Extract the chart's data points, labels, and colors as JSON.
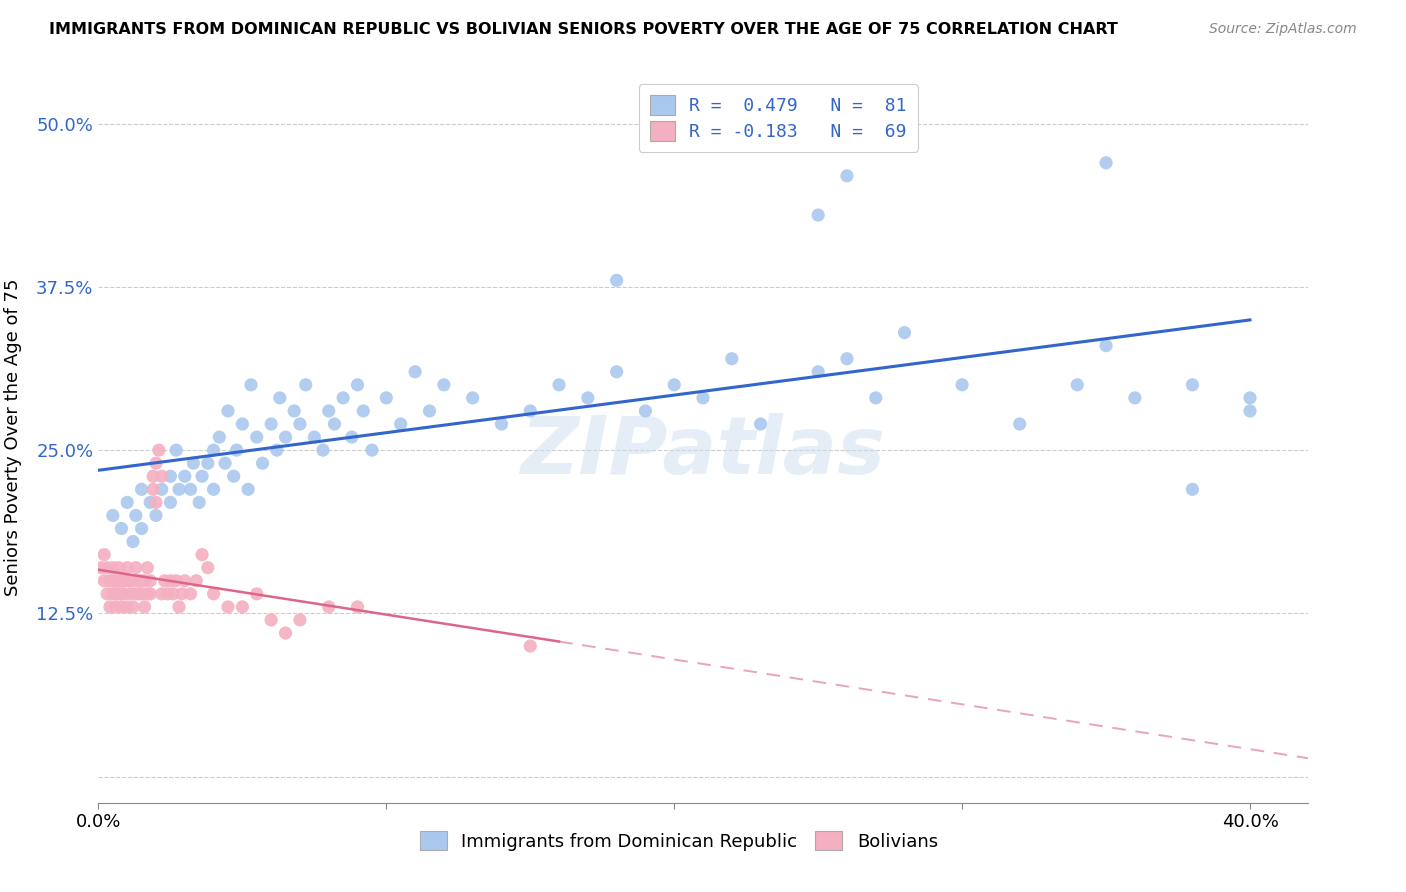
{
  "title": "IMMIGRANTS FROM DOMINICAN REPUBLIC VS BOLIVIAN SENIORS POVERTY OVER THE AGE OF 75 CORRELATION CHART",
  "source": "Source: ZipAtlas.com",
  "ylabel": "Seniors Poverty Over the Age of 75",
  "xlim": [
    0.0,
    0.42
  ],
  "ylim": [
    -0.02,
    0.54
  ],
  "blue_color": "#aac8ee",
  "blue_line_color": "#3366cc",
  "pink_color": "#f4afc0",
  "pink_line_color": "#dd6688",
  "watermark": "ZIPatlas",
  "blue_R": 0.479,
  "blue_N": 81,
  "pink_R": -0.183,
  "pink_N": 69,
  "blue_x": [
    0.005,
    0.008,
    0.01,
    0.012,
    0.013,
    0.015,
    0.015,
    0.018,
    0.02,
    0.022,
    0.025,
    0.025,
    0.027,
    0.028,
    0.03,
    0.032,
    0.033,
    0.035,
    0.036,
    0.038,
    0.04,
    0.04,
    0.042,
    0.044,
    0.045,
    0.047,
    0.048,
    0.05,
    0.052,
    0.053,
    0.055,
    0.057,
    0.06,
    0.062,
    0.063,
    0.065,
    0.068,
    0.07,
    0.072,
    0.075,
    0.078,
    0.08,
    0.082,
    0.085,
    0.088,
    0.09,
    0.092,
    0.095,
    0.1,
    0.105,
    0.11,
    0.115,
    0.12,
    0.13,
    0.14,
    0.15,
    0.16,
    0.17,
    0.18,
    0.19,
    0.2,
    0.21,
    0.22,
    0.23,
    0.25,
    0.26,
    0.27,
    0.28,
    0.3,
    0.32,
    0.34,
    0.35,
    0.36,
    0.38,
    0.4,
    0.25,
    0.26,
    0.18,
    0.35,
    0.38,
    0.4
  ],
  "blue_y": [
    0.2,
    0.19,
    0.21,
    0.18,
    0.2,
    0.19,
    0.22,
    0.21,
    0.2,
    0.22,
    0.23,
    0.21,
    0.25,
    0.22,
    0.23,
    0.22,
    0.24,
    0.21,
    0.23,
    0.24,
    0.25,
    0.22,
    0.26,
    0.24,
    0.28,
    0.23,
    0.25,
    0.27,
    0.22,
    0.3,
    0.26,
    0.24,
    0.27,
    0.25,
    0.29,
    0.26,
    0.28,
    0.27,
    0.3,
    0.26,
    0.25,
    0.28,
    0.27,
    0.29,
    0.26,
    0.3,
    0.28,
    0.25,
    0.29,
    0.27,
    0.31,
    0.28,
    0.3,
    0.29,
    0.27,
    0.28,
    0.3,
    0.29,
    0.31,
    0.28,
    0.3,
    0.29,
    0.32,
    0.27,
    0.31,
    0.32,
    0.29,
    0.34,
    0.3,
    0.27,
    0.3,
    0.33,
    0.29,
    0.22,
    0.28,
    0.43,
    0.46,
    0.38,
    0.47,
    0.3,
    0.29
  ],
  "pink_x": [
    0.001,
    0.002,
    0.002,
    0.003,
    0.003,
    0.004,
    0.004,
    0.005,
    0.005,
    0.005,
    0.006,
    0.006,
    0.006,
    0.007,
    0.007,
    0.007,
    0.008,
    0.008,
    0.008,
    0.009,
    0.009,
    0.01,
    0.01,
    0.01,
    0.011,
    0.011,
    0.012,
    0.012,
    0.013,
    0.013,
    0.014,
    0.014,
    0.015,
    0.015,
    0.016,
    0.016,
    0.017,
    0.017,
    0.018,
    0.018,
    0.019,
    0.019,
    0.02,
    0.02,
    0.021,
    0.022,
    0.022,
    0.023,
    0.024,
    0.025,
    0.026,
    0.027,
    0.028,
    0.029,
    0.03,
    0.032,
    0.034,
    0.036,
    0.038,
    0.04,
    0.045,
    0.05,
    0.055,
    0.06,
    0.065,
    0.07,
    0.08,
    0.09,
    0.15
  ],
  "pink_y": [
    0.16,
    0.15,
    0.17,
    0.14,
    0.16,
    0.13,
    0.15,
    0.14,
    0.15,
    0.16,
    0.13,
    0.15,
    0.14,
    0.15,
    0.16,
    0.14,
    0.13,
    0.15,
    0.14,
    0.15,
    0.14,
    0.16,
    0.15,
    0.13,
    0.15,
    0.14,
    0.13,
    0.15,
    0.14,
    0.16,
    0.15,
    0.14,
    0.15,
    0.14,
    0.13,
    0.15,
    0.14,
    0.16,
    0.15,
    0.14,
    0.22,
    0.23,
    0.24,
    0.21,
    0.25,
    0.23,
    0.14,
    0.15,
    0.14,
    0.15,
    0.14,
    0.15,
    0.13,
    0.14,
    0.15,
    0.14,
    0.15,
    0.17,
    0.16,
    0.14,
    0.13,
    0.13,
    0.14,
    0.12,
    0.11,
    0.12,
    0.13,
    0.13,
    0.1
  ]
}
